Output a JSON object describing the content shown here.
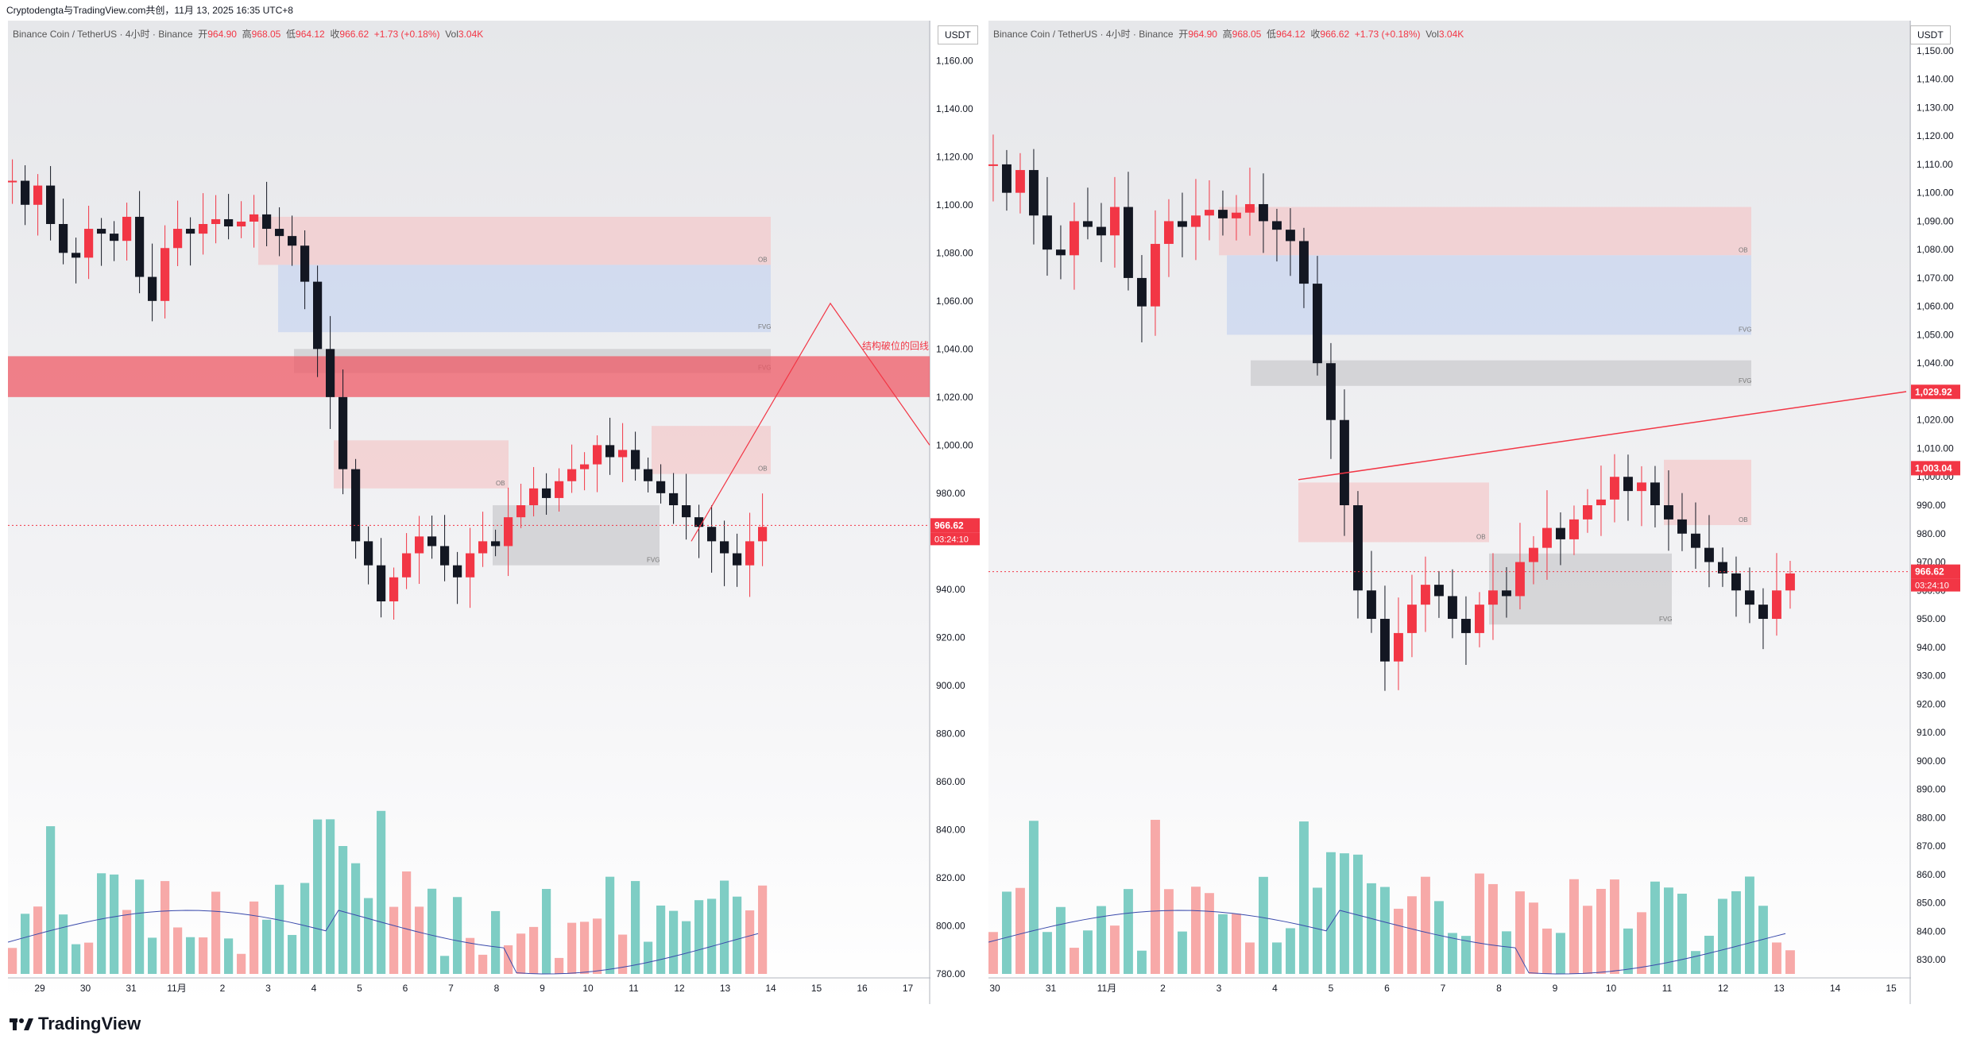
{
  "header": {
    "text": "Cryptodengta与TradingView.com共创，11月 13, 2025 16:35 UTC+8"
  },
  "footer": {
    "brand": "TradingView"
  },
  "colors": {
    "up": "#f23645",
    "down": "#131722",
    "vol_up": "#f7a9a8",
    "vol_down": "#7ecdc4",
    "ma": "#3949ab",
    "ob_fill": "#f4c7c9",
    "fvg_blue": "#c7d4f0",
    "fvg_gray": "#c9c9cc",
    "price_line": "#f23645"
  },
  "symbol": {
    "name": "Binance Coin / TetherUS · 4小时 · Binance",
    "open_label": "开",
    "open": "964.90",
    "high_label": "高",
    "high": "968.05",
    "low_label": "低",
    "low": "964.12",
    "close_label": "收",
    "close": "966.62",
    "change": "+1.73 (+0.18%)",
    "vol_label": "Vol",
    "vol": "3.04K",
    "currency": "USDT"
  },
  "chart_data": [
    {
      "type": "candlestick",
      "title": "Binance Coin / TetherUS · 4小时 · Binance",
      "x_ticks": [
        "29",
        "30",
        "31",
        "11月",
        "2",
        "3",
        "4",
        "5",
        "6",
        "7",
        "8",
        "9",
        "10",
        "11",
        "12",
        "13",
        "14",
        "15",
        "16",
        "17"
      ],
      "y_ticks": [
        "1,160.00",
        "1,140.00",
        "1,120.00",
        "1,100.00",
        "1,080.00",
        "1,060.00",
        "1,040.00",
        "1,020.00",
        "1,000.00",
        "980.00",
        "960.00",
        "940.00",
        "920.00",
        "900.00",
        "880.00",
        "860.00",
        "840.00",
        "820.00",
        "800.00",
        "780.00"
      ],
      "ylim": [
        780,
        1170
      ],
      "last_price": "966.62",
      "countdown": "03:24:10",
      "annotation": "结构破位的回线",
      "labels": [
        "FVG",
        "OB"
      ],
      "ohlc_close": [
        1110,
        1100,
        1108,
        1092,
        1080,
        1078,
        1090,
        1088,
        1085,
        1095,
        1070,
        1060,
        1082,
        1090,
        1088,
        1092,
        1094,
        1091,
        1093,
        1096,
        1090,
        1087,
        1083,
        1068,
        1040,
        1020,
        990,
        960,
        950,
        935,
        945,
        955,
        962,
        958,
        950,
        945,
        955,
        960,
        958,
        970,
        975,
        982,
        978,
        985,
        990,
        992,
        1000,
        995,
        998,
        990,
        985,
        980,
        975,
        970,
        966,
        960,
        955,
        950,
        960,
        966
      ]
    },
    {
      "type": "candlestick",
      "title": "Binance Coin / TetherUS · 4小时 · Binance",
      "x_ticks": [
        "30",
        "31",
        "11月",
        "2",
        "3",
        "4",
        "5",
        "6",
        "7",
        "8",
        "9",
        "10",
        "11",
        "12",
        "13",
        "14",
        "15"
      ],
      "y_ticks": [
        "1,150.00",
        "1,140.00",
        "1,130.00",
        "1,120.00",
        "1,110.00",
        "1,100.00",
        "1,090.00",
        "1,080.00",
        "1,070.00",
        "1,060.00",
        "1,050.00",
        "1,040.00",
        "1,030.00",
        "1,020.00",
        "1,010.00",
        "1,000.00",
        "990.00",
        "980.00",
        "970.00",
        "960.00",
        "950.00",
        "940.00",
        "930.00",
        "920.00",
        "910.00",
        "900.00",
        "890.00",
        "880.00",
        "870.00",
        "860.00",
        "850.00",
        "840.00",
        "830.00"
      ],
      "ylim": [
        825,
        1155
      ],
      "price_labels": [
        "1,029.92",
        "1,003.04",
        "966.62"
      ],
      "countdown": "03:24:10",
      "labels": [
        "FVG",
        "OB"
      ]
    }
  ]
}
